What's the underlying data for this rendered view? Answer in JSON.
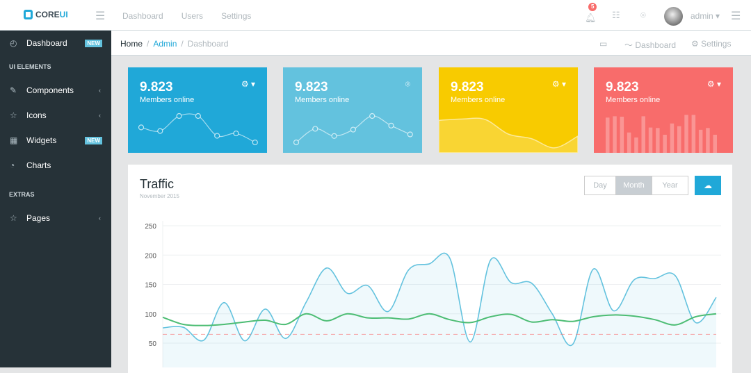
{
  "header": {
    "brand_main": "CORE",
    "brand_accent": "UI",
    "nav": [
      "Dashboard",
      "Users",
      "Settings"
    ],
    "notification_count": "5",
    "user": "admin"
  },
  "sidebar": {
    "items": [
      {
        "label": "Dashboard",
        "icon": "speedometer-icon",
        "badge": "NEW"
      },
      {
        "section": "UI ELEMENTS"
      },
      {
        "label": "Components",
        "icon": "puzzle-icon"
      },
      {
        "label": "Icons",
        "icon": "star-icon"
      },
      {
        "label": "Widgets",
        "icon": "calculator-icon",
        "badge": "NEW"
      },
      {
        "label": "Charts",
        "icon": "pie-chart-icon"
      },
      {
        "section": "EXTRAS"
      },
      {
        "label": "Pages",
        "icon": "star-icon"
      }
    ]
  },
  "breadcrumb": {
    "items": [
      "Home",
      "Admin",
      "Dashboard"
    ],
    "right": [
      "Dashboard",
      "Settings"
    ]
  },
  "cards": [
    {
      "value": "9.823",
      "label": "Members online",
      "color": "#20a8d8",
      "spark": [
        65,
        59,
        84,
        84,
        51,
        55,
        40
      ]
    },
    {
      "value": "9.823",
      "label": "Members online",
      "color": "#63c2de",
      "spark": [
        1,
        18,
        9,
        17,
        34,
        22,
        11
      ]
    },
    {
      "value": "9.823",
      "label": "Members online",
      "color": "#f8cb00",
      "spark": [
        78,
        81,
        80,
        45,
        34,
        12,
        40
      ]
    },
    {
      "value": "9.823",
      "label": "Members online",
      "color": "#f86c6b",
      "spark": [
        78,
        81,
        80,
        45,
        34,
        81,
        56,
        55,
        40,
        65,
        59,
        84,
        84,
        51,
        55,
        40
      ]
    }
  ],
  "traffic": {
    "title": "Traffic",
    "subtitle": "November 2015",
    "ranges": [
      "Day",
      "Month",
      "Year"
    ],
    "selected": "Month"
  },
  "chart_data": {
    "type": "line",
    "ylim": [
      0,
      250
    ],
    "yticks": [
      250,
      200,
      150,
      100,
      50
    ],
    "grid": true,
    "series": [
      {
        "color": "#63c2de",
        "fill": true,
        "values": [
          76,
          77,
          55,
          119,
          54,
          108,
          58,
          120,
          178,
          135,
          148,
          104,
          175,
          185,
          195,
          52,
          192,
          153,
          152,
          100,
          48,
          176,
          105,
          158,
          160,
          165,
          85,
          128
        ]
      },
      {
        "color": "#4dbd74",
        "values": [
          94,
          82,
          80,
          82,
          86,
          89,
          82,
          100,
          88,
          100,
          93,
          93,
          91,
          100,
          90,
          85,
          95,
          99,
          86,
          90,
          87,
          95,
          98,
          96,
          90,
          81,
          95,
          100
        ]
      },
      {
        "color": "#f86c6b",
        "dashed": true,
        "values": [
          65,
          65
        ]
      }
    ]
  }
}
